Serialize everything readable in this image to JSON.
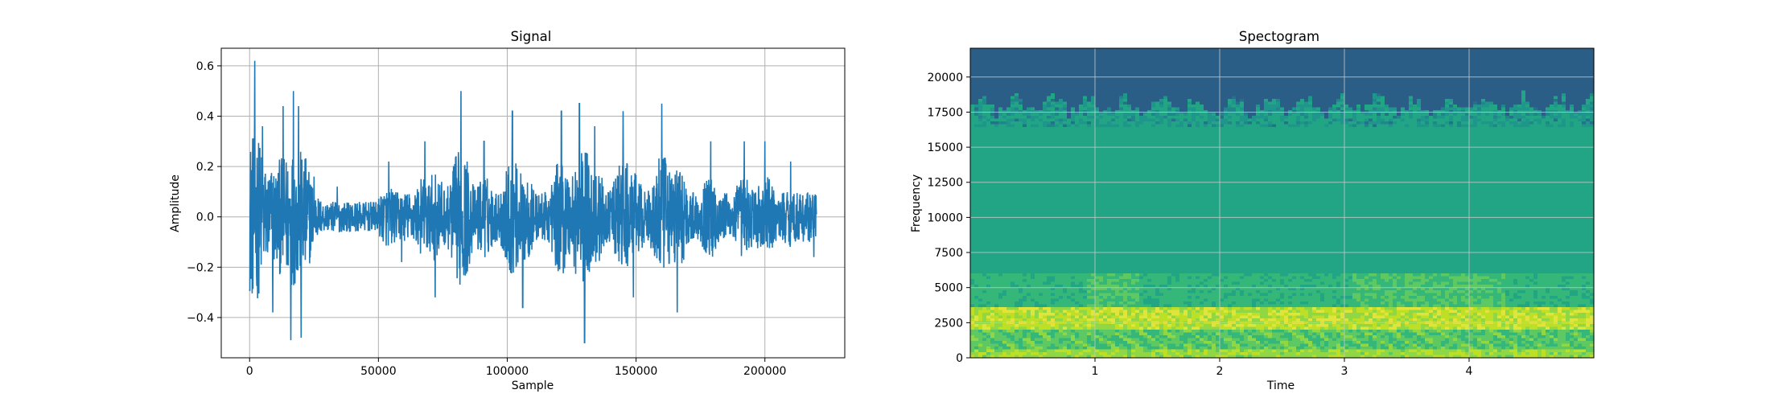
{
  "chart_data": [
    {
      "type": "line",
      "title": "Signal",
      "xlabel": "Sample",
      "ylabel": "Amplitude",
      "xlim": [
        -11000,
        231000
      ],
      "ylim": [
        -0.56,
        0.67
      ],
      "xticks": [
        0,
        50000,
        100000,
        150000,
        200000
      ],
      "xtick_labels": [
        "0",
        "50000",
        "100000",
        "150000",
        "200000"
      ],
      "yticks": [
        -0.4,
        -0.2,
        0.0,
        0.2,
        0.4,
        0.6
      ],
      "ytick_labels": [
        "−0.4",
        "−0.2",
        "0.0",
        "0.2",
        "0.4",
        "0.6"
      ],
      "grid": true,
      "series": [
        {
          "color": "#1f77b4",
          "x_start": 0,
          "x_end": 220000,
          "min": -0.5,
          "max": 0.62,
          "peaks": [
            [
              2000,
              0.62
            ],
            [
              5000,
              0.36
            ],
            [
              9000,
              -0.38
            ],
            [
              13000,
              0.44
            ],
            [
              16000,
              -0.49
            ],
            [
              17000,
              0.5
            ],
            [
              19000,
              0.44
            ],
            [
              20000,
              -0.48
            ],
            [
              25000,
              0.16
            ],
            [
              34000,
              0.12
            ],
            [
              54000,
              0.22
            ],
            [
              59000,
              -0.18
            ],
            [
              68000,
              0.3
            ],
            [
              72000,
              -0.32
            ],
            [
              82000,
              0.5
            ],
            [
              91000,
              0.3
            ],
            [
              102000,
              0.42
            ],
            [
              106000,
              -0.36
            ],
            [
              121000,
              0.42
            ],
            [
              128000,
              0.45
            ],
            [
              130000,
              -0.5
            ],
            [
              134000,
              0.36
            ],
            [
              145000,
              0.42
            ],
            [
              149000,
              -0.32
            ],
            [
              160000,
              0.45
            ],
            [
              166000,
              -0.38
            ],
            [
              179000,
              0.3
            ],
            [
              192000,
              0.3
            ],
            [
              200000,
              0.3
            ],
            [
              210000,
              0.22
            ],
            [
              219000,
              -0.16
            ]
          ]
        }
      ]
    },
    {
      "type": "heatmap",
      "title": "Spectogram",
      "xlabel": "Time",
      "ylabel": "Frequency",
      "xlim": [
        0,
        5.0
      ],
      "ylim": [
        0,
        22050
      ],
      "xticks": [
        1,
        2,
        3,
        4
      ],
      "xtick_labels": [
        "1",
        "2",
        "3",
        "4"
      ],
      "yticks": [
        0,
        2500,
        5000,
        7500,
        10000,
        12500,
        15000,
        17500,
        20000
      ],
      "ytick_labels": [
        "0",
        "2500",
        "5000",
        "7500",
        "10000",
        "12500",
        "15000",
        "17500",
        "20000"
      ],
      "grid": true,
      "colormap": "viridis",
      "bands": [
        {
          "f_from": 0,
          "f_to": 600,
          "level": "yellow-green"
        },
        {
          "f_from": 600,
          "f_to": 2000,
          "level": "green"
        },
        {
          "f_from": 2000,
          "f_to": 3500,
          "level": "yellow"
        },
        {
          "f_from": 3500,
          "f_to": 6000,
          "level": "light-green"
        },
        {
          "f_from": 6000,
          "f_to": 17000,
          "level": "teal-green"
        },
        {
          "f_from": 17000,
          "f_to": 18500,
          "level": "mixed"
        },
        {
          "f_from": 18500,
          "f_to": 22050,
          "level": "dark-blue"
        }
      ]
    }
  ],
  "colors": {
    "line": "#1f77b4",
    "grid": "#b0b0b0",
    "spectro_low": "#2b5e86",
    "spectro_mid": "#21a585",
    "spectro_high": "#e1e43a"
  }
}
